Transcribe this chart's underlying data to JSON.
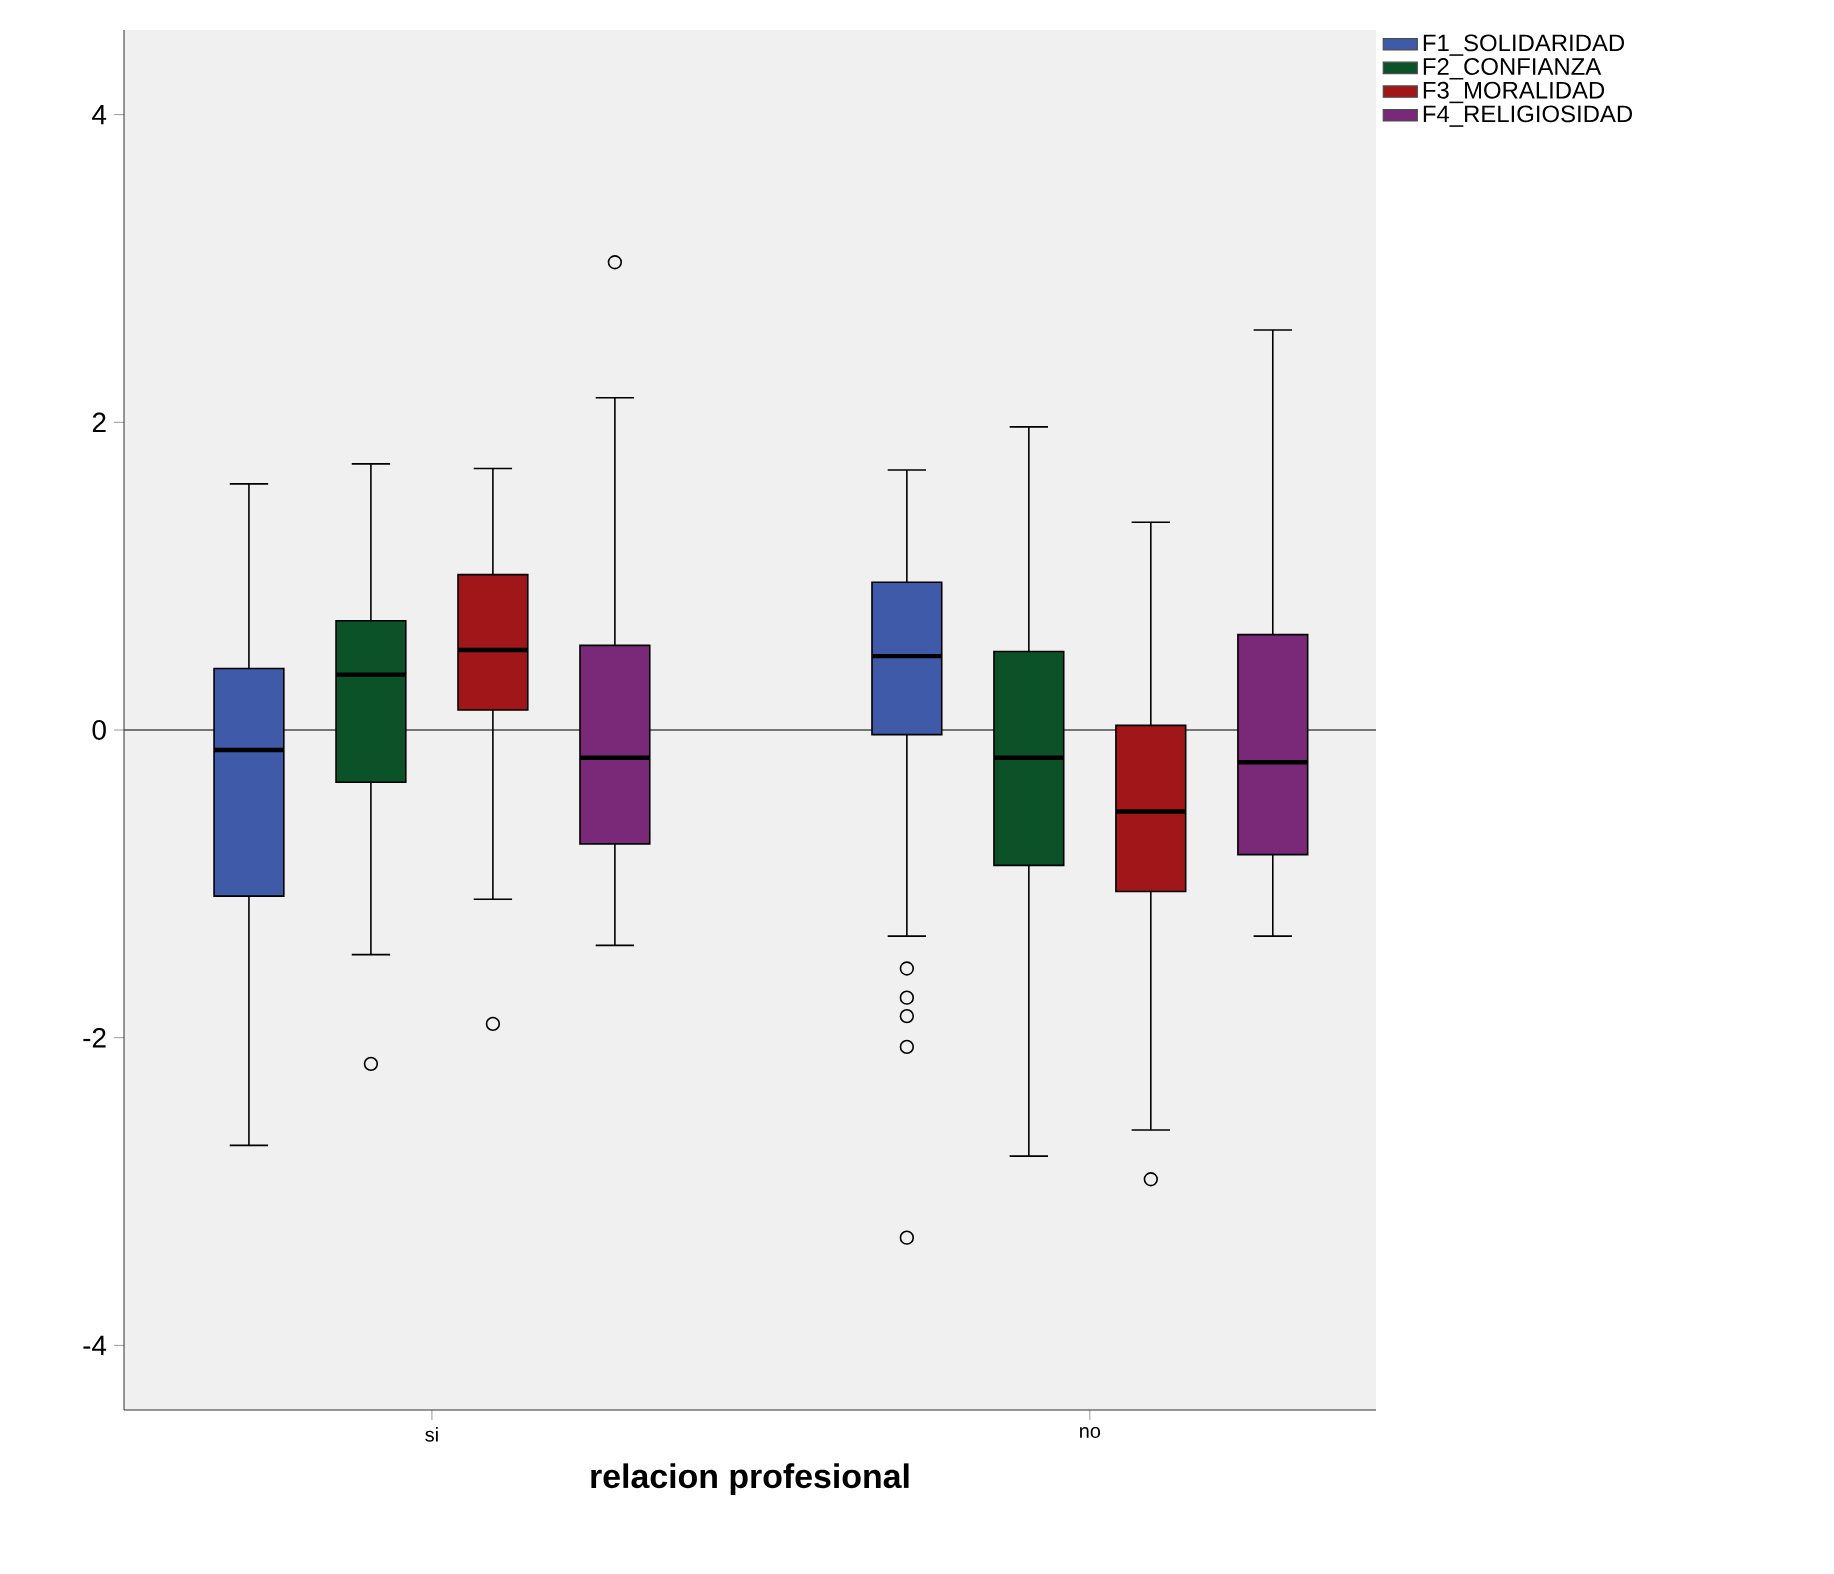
{
  "chart_data": {
    "type": "box",
    "xlabel": "relacion profesional",
    "categories": [
      "si",
      "no"
    ],
    "series": [
      {
        "name": "F1_SOLIDARIDAD",
        "color": "#3f5aa8",
        "boxes": [
          {
            "low": -2.7,
            "q1": -1.08,
            "median": -0.13,
            "q3": 0.4,
            "high": 1.6
          },
          {
            "low": -1.34,
            "q1": -0.03,
            "median": 0.48,
            "q3": 0.96,
            "high": 1.69,
            "outliers": [
              -1.55,
              -1.74,
              -1.86,
              -2.06,
              -3.3
            ]
          }
        ]
      },
      {
        "name": "F2_CONFIANZA",
        "color": "#0b5229",
        "boxes": [
          {
            "low": -1.46,
            "q1": -0.34,
            "median": 0.36,
            "q3": 0.71,
            "high": 1.73,
            "outliers": [
              -2.17
            ]
          },
          {
            "low": -2.77,
            "q1": -0.88,
            "median": -0.18,
            "q3": 0.51,
            "high": 1.97
          }
        ]
      },
      {
        "name": "F3_MORALIDAD",
        "color": "#a01619",
        "boxes": [
          {
            "low": -1.1,
            "q1": 0.13,
            "median": 0.52,
            "q3": 1.01,
            "high": 1.7,
            "outliers": [
              -1.91
            ]
          },
          {
            "low": -2.6,
            "q1": -1.05,
            "median": -0.53,
            "q3": 0.03,
            "high": 1.35,
            "outliers": [
              -2.92
            ]
          }
        ]
      },
      {
        "name": "F4_RELIGIOSIDAD",
        "color": "#7a2878",
        "boxes": [
          {
            "low": -1.4,
            "q1": -0.74,
            "median": -0.18,
            "q3": 0.55,
            "high": 2.16,
            "outliers": [
              3.04
            ]
          },
          {
            "low": -1.34,
            "q1": -0.81,
            "median": -0.21,
            "q3": 0.62,
            "high": 2.6
          }
        ]
      }
    ],
    "ylim": [
      -4.42,
      4.55
    ],
    "yticks": [
      -4,
      -2,
      0,
      2,
      4
    ],
    "ref_lines": [
      {
        "axis": "y",
        "value": 0
      }
    ],
    "legend": "top right"
  }
}
